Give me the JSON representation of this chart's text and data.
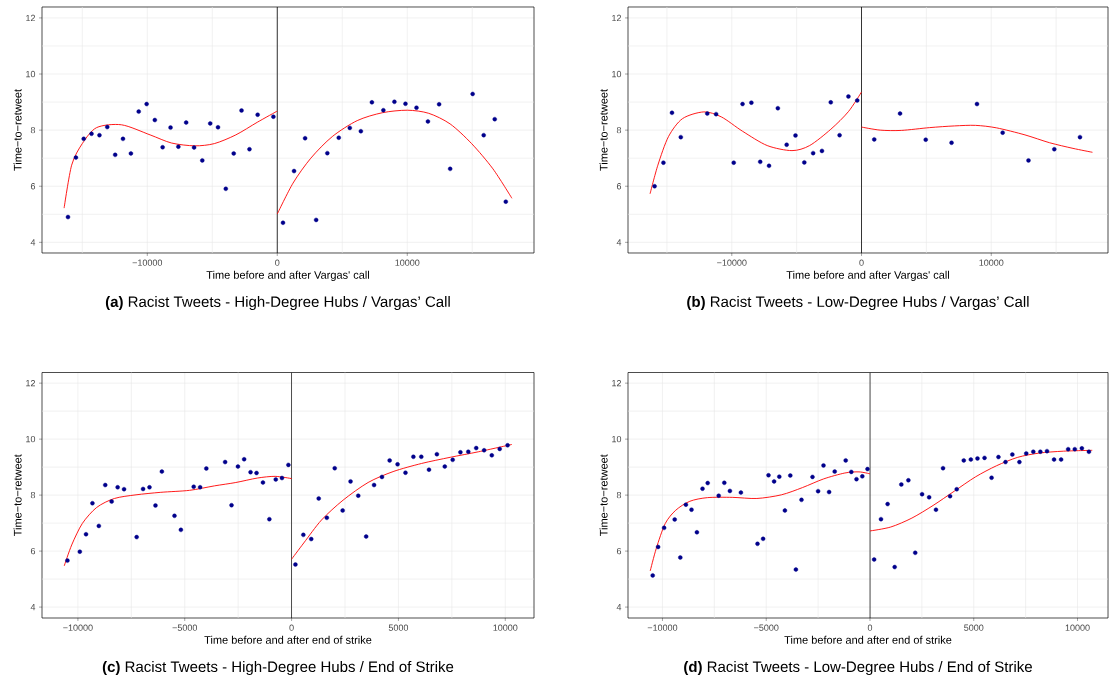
{
  "chart_data": [
    {
      "type": "scatter",
      "title": "**(a)** Racist Tweets - High-Degree Hubs / Vargas’ Call",
      "xlabel": "Time before and after Vargas' call",
      "ylabel": "Time−to−retweet",
      "grid": true,
      "xlim": [
        -18100,
        19750
      ],
      "ylim": [
        3.62,
        12.39
      ],
      "xticks": [
        {
          "value": -15000,
          "label": null
        },
        {
          "value": -10000,
          "label": "−10000"
        },
        {
          "value": -5000,
          "label": null
        },
        0,
        {
          "value": 5000,
          "label": null
        },
        10000,
        {
          "value": 15000,
          "label": null
        }
      ],
      "yticks": [
        4,
        {
          "value": 5,
          "label": null
        },
        6,
        {
          "value": 7,
          "label": null
        },
        8,
        {
          "value": 9,
          "label": null
        },
        10,
        {
          "value": 11,
          "label": null
        },
        12
      ],
      "ref_lines": [
        {
          "axis": "x",
          "value": 0,
          "color": "#000000"
        }
      ],
      "series": [
        {
          "marker": "circle",
          "color": "#00008b",
          "x": [
            -16100,
            -15490,
            -14890,
            -14290,
            -13680,
            -13080,
            -12470,
            -11870,
            -11260,
            -10660,
            -10050,
            -9420,
            -8820,
            -8210,
            -7610,
            -7010,
            -6400,
            -5770,
            -5160,
            -4560,
            -3960,
            -3350,
            -2750,
            -2140,
            -1510,
            -300,
            440,
            1290,
            2140,
            2990,
            3850,
            4730,
            5580,
            6430,
            7280,
            8160,
            9010,
            9860,
            10710,
            11590,
            12450,
            13300,
            15030,
            15880,
            16730,
            17580
          ],
          "values": [
            4.9,
            7.02,
            7.69,
            7.87,
            7.82,
            8.11,
            7.12,
            7.69,
            7.17,
            8.66,
            8.93,
            8.36,
            7.39,
            8.09,
            7.41,
            8.27,
            7.38,
            6.92,
            8.24,
            8.1,
            5.91,
            7.17,
            8.7,
            7.32,
            8.55,
            8.48,
            4.7,
            6.54,
            7.71,
            4.8,
            7.18,
            7.73,
            8.08,
            7.96,
            8.99,
            8.71,
            9.01,
            8.94,
            8.8,
            8.31,
            8.92,
            6.62,
            9.29,
            7.82,
            8.39,
            5.45
          ]
        },
        {
          "type": "line",
          "color": "#ff0000",
          "x": [
            -16400,
            -15820,
            -15000,
            -13900,
            -11980,
            -9780,
            -8130,
            -6350,
            -4840,
            -3190,
            -1540,
            0
          ],
          "values": [
            5.22,
            6.75,
            7.52,
            8.09,
            8.19,
            7.83,
            7.54,
            7.44,
            7.52,
            7.83,
            8.28,
            8.68
          ]
        },
        {
          "type": "line",
          "color": "#ff0000",
          "x": [
            0,
            1210,
            2580,
            4230,
            6150,
            8080,
            10000,
            11650,
            13300,
            14950,
            16590,
            18050
          ],
          "values": [
            5.01,
            6.11,
            7.0,
            7.77,
            8.34,
            8.62,
            8.71,
            8.6,
            8.22,
            7.52,
            6.62,
            5.57
          ]
        }
      ]
    },
    {
      "type": "scatter",
      "title": "**(b)** Racist Tweets - Low-Degree Hubs / Vargas’ Call",
      "xlabel": "Time before and after Vargas' call",
      "ylabel": "Time−to−retweet",
      "grid": true,
      "xlim": [
        -18000,
        19000
      ],
      "ylim": [
        3.62,
        12.39
      ],
      "xticks": [
        {
          "value": -15000,
          "label": null
        },
        {
          "value": -10000,
          "label": "−10000"
        },
        {
          "value": -5000,
          "label": null
        },
        0,
        {
          "value": 5000,
          "label": null
        },
        10000,
        {
          "value": 15000,
          "label": null
        }
      ],
      "yticks": [
        4,
        {
          "value": 5,
          "label": null
        },
        6,
        {
          "value": 7,
          "label": null
        },
        8,
        {
          "value": 9,
          "label": null
        },
        10,
        {
          "value": 11,
          "label": null
        },
        12
      ],
      "ref_lines": [
        {
          "axis": "x",
          "value": 0,
          "color": "#000000"
        }
      ],
      "series": [
        {
          "marker": "circle",
          "color": "#00008b",
          "x": [
            -15950,
            -15270,
            -14610,
            -13930,
            -11890,
            -11210,
            -9850,
            -9170,
            -8490,
            -7810,
            -7130,
            -6450,
            -5770,
            -5090,
            -4410,
            -3730,
            -3050,
            -2370,
            -1690,
            -1010,
            -330,
            980,
            2970,
            4950,
            6940,
            8900,
            10880,
            12870,
            14860,
            16840
          ],
          "values": [
            6.0,
            6.84,
            8.62,
            7.75,
            8.59,
            8.57,
            6.84,
            8.93,
            8.98,
            6.87,
            6.73,
            8.78,
            7.48,
            7.81,
            6.85,
            7.18,
            7.26,
            8.99,
            7.82,
            9.2,
            9.06,
            7.67,
            8.59,
            7.66,
            7.55,
            8.93,
            7.91,
            6.92,
            7.32,
            7.75
          ]
        },
        {
          "type": "line",
          "color": "#ff0000",
          "x": [
            -16300,
            -15700,
            -14880,
            -13800,
            -12160,
            -10800,
            -9170,
            -7270,
            -5360,
            -4000,
            -2370,
            -1010,
            0
          ],
          "values": [
            5.73,
            6.75,
            7.77,
            8.41,
            8.65,
            8.47,
            7.96,
            7.45,
            7.27,
            7.45,
            8.03,
            8.66,
            9.36
          ]
        },
        {
          "type": "line",
          "color": "#ff0000",
          "x": [
            0,
            1440,
            3070,
            5250,
            7160,
            8790,
            10420,
            12600,
            14500,
            16300,
            17800
          ],
          "values": [
            8.11,
            8.0,
            7.99,
            8.09,
            8.15,
            8.17,
            8.08,
            7.83,
            7.55,
            7.35,
            7.21
          ]
        }
      ]
    },
    {
      "type": "scatter",
      "title": "**(c)** Racist Tweets - High-Degree Hubs / End of Strike",
      "xlabel": "Time before and after end of strike",
      "ylabel": "Time−to−retweet",
      "grid": true,
      "xlim": [
        -11680,
        11345
      ],
      "ylim": [
        3.61,
        12.38
      ],
      "xticks": [
        {
          "value": -10000,
          "label": "−10000"
        },
        {
          "value": -7500,
          "label": null
        },
        {
          "value": -5000,
          "label": "−5000"
        },
        {
          "value": -2500,
          "label": null
        },
        0,
        {
          "value": 2500,
          "label": null
        },
        5000,
        {
          "value": 7500,
          "label": null
        },
        10000
      ],
      "yticks": [
        4,
        {
          "value": 5,
          "label": null
        },
        6,
        {
          "value": 7,
          "label": null
        },
        8,
        {
          "value": 9,
          "label": null
        },
        10,
        {
          "value": 11,
          "label": null
        },
        12
      ],
      "ref_lines": [
        {
          "axis": "x",
          "value": 0,
          "color": "#000000"
        }
      ],
      "series": [
        {
          "marker": "circle",
          "color": "#00008b",
          "x": [
            -10490,
            -9910,
            -9620,
            -9320,
            -9020,
            -8720,
            -8420,
            -8140,
            -7840,
            -7250,
            -6950,
            -6650,
            -6370,
            -6070,
            -5480,
            -5180,
            -4580,
            -4280,
            -3990,
            -3110,
            -2810,
            -2510,
            -2220,
            -1920,
            -1640,
            -1340,
            -1040,
            -740,
            -450,
            -150,
            180,
            550,
            920,
            1270,
            1650,
            2020,
            2390,
            2760,
            3120,
            3490,
            3860,
            4230,
            4590,
            4960,
            5330,
            5700,
            6070,
            6430,
            6800,
            7170,
            7540,
            7900,
            8270,
            8640,
            9010,
            9370,
            9740,
            10110
          ],
          "values": [
            5.66,
            5.98,
            6.6,
            7.71,
            6.9,
            8.36,
            7.77,
            8.28,
            8.21,
            6.5,
            8.22,
            8.28,
            7.63,
            8.84,
            7.26,
            6.76,
            8.3,
            8.28,
            8.95,
            9.18,
            7.64,
            9.02,
            9.28,
            8.82,
            8.79,
            8.45,
            7.14,
            8.56,
            8.61,
            9.08,
            5.52,
            6.58,
            6.43,
            7.88,
            7.19,
            8.96,
            7.45,
            8.49,
            7.98,
            6.52,
            8.36,
            8.65,
            9.24,
            9.1,
            8.8,
            9.37,
            9.37,
            8.91,
            9.46,
            9.02,
            9.26,
            9.53,
            9.55,
            9.68,
            9.6,
            9.42,
            9.65,
            9.78
          ]
        },
        {
          "type": "line",
          "color": "#ff0000",
          "x": [
            -10640,
            -10290,
            -9790,
            -9120,
            -8290,
            -7280,
            -6120,
            -4780,
            -3610,
            -2610,
            -1600,
            -770,
            0
          ],
          "values": [
            5.47,
            6.22,
            6.99,
            7.56,
            7.88,
            8.01,
            8.1,
            8.17,
            8.33,
            8.45,
            8.61,
            8.67,
            8.59
          ]
        },
        {
          "type": "line",
          "color": "#ff0000",
          "x": [
            0,
            570,
            1400,
            2410,
            3580,
            4750,
            6080,
            7420,
            8760,
            10310
          ],
          "values": [
            5.71,
            6.29,
            7.11,
            7.82,
            8.45,
            8.84,
            9.13,
            9.35,
            9.55,
            9.81
          ]
        }
      ]
    },
    {
      "type": "scatter",
      "title": "**(d)** Racist Tweets - Low-Degree Hubs / End of Strike",
      "xlabel": "Time before and after end of strike",
      "ylabel": "Time−to−retweet",
      "grid": true,
      "xlim": [
        -11660,
        11470
      ],
      "ylim": [
        3.61,
        12.38
      ],
      "xticks": [
        {
          "value": -10000,
          "label": "−10000"
        },
        {
          "value": -7500,
          "label": null
        },
        {
          "value": -5000,
          "label": "−5000"
        },
        {
          "value": -2500,
          "label": null
        },
        0,
        {
          "value": 2500,
          "label": null
        },
        5000,
        {
          "value": 7500,
          "label": null
        },
        10000
      ],
      "yticks": [
        4,
        {
          "value": 5,
          "label": null
        },
        6,
        {
          "value": 7,
          "label": null
        },
        8,
        {
          "value": 9,
          "label": null
        },
        10,
        {
          "value": 11,
          "label": null
        },
        12
      ],
      "ref_lines": [
        {
          "axis": "x",
          "value": 0,
          "color": "#000000"
        }
      ],
      "series": [
        {
          "marker": "circle",
          "color": "#00008b",
          "x": [
            -10470,
            -10210,
            -9920,
            -9410,
            -9140,
            -8870,
            -8600,
            -8340,
            -8070,
            -7820,
            -7290,
            -7020,
            -6750,
            -6220,
            -5420,
            -5150,
            -4890,
            -4620,
            -4370,
            -4100,
            -3840,
            -3570,
            -3300,
            -2770,
            -2500,
            -2240,
            -1970,
            -1700,
            -1170,
            -900,
            -650,
            -370,
            -120,
            200,
            530,
            850,
            1190,
            1510,
            1850,
            2180,
            2510,
            2850,
            3180,
            3520,
            3860,
            4180,
            4520,
            4860,
            5180,
            5520,
            5860,
            6190,
            6530,
            6860,
            7200,
            7530,
            7870,
            8210,
            8530,
            8870,
            9210,
            9550,
            9870,
            10210,
            10550
          ],
          "values": [
            5.13,
            6.15,
            6.83,
            7.13,
            5.77,
            7.66,
            7.48,
            6.67,
            8.23,
            8.43,
            7.98,
            8.44,
            8.15,
            8.09,
            6.26,
            6.44,
            8.71,
            8.49,
            8.66,
            7.45,
            8.7,
            5.34,
            7.83,
            8.65,
            8.14,
            9.06,
            8.11,
            8.84,
            9.24,
            8.83,
            8.57,
            8.67,
            8.93,
            5.7,
            7.14,
            7.68,
            5.43,
            8.38,
            8.53,
            5.94,
            8.03,
            7.92,
            7.48,
            8.96,
            7.96,
            8.21,
            9.24,
            9.27,
            9.31,
            9.33,
            8.62,
            9.36,
            9.18,
            9.45,
            9.18,
            9.49,
            9.55,
            9.55,
            9.57,
            9.27,
            9.27,
            9.64,
            9.64,
            9.67,
            9.55
          ]
        },
        {
          "type": "line",
          "color": "#ff0000",
          "x": [
            -10590,
            -10300,
            -9870,
            -9360,
            -8680,
            -7830,
            -6640,
            -5450,
            -4270,
            -3250,
            -2230,
            -1210,
            -530,
            0
          ],
          "values": [
            5.29,
            6.09,
            6.98,
            7.46,
            7.78,
            7.91,
            7.92,
            7.88,
            8.01,
            8.27,
            8.58,
            8.79,
            8.83,
            8.76
          ]
        },
        {
          "type": "line",
          "color": "#ff0000",
          "x": [
            0,
            1000,
            2020,
            3040,
            4060,
            5080,
            6100,
            7120,
            8140,
            9330,
            10710
          ],
          "values": [
            6.72,
            6.86,
            7.18,
            7.63,
            8.14,
            8.65,
            9.05,
            9.35,
            9.5,
            9.57,
            9.6
          ]
        }
      ]
    }
  ]
}
